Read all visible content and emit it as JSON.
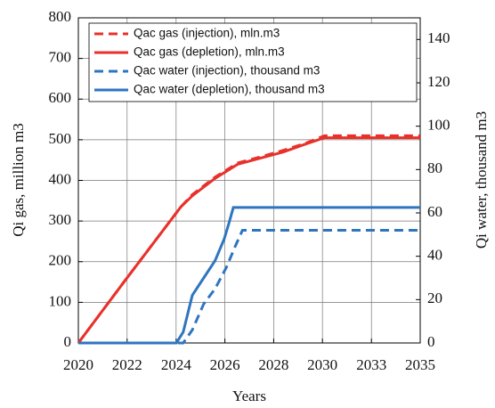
{
  "chart_data": {
    "type": "line",
    "x_label": "Years",
    "y_label": "Qi gas, million m3",
    "y2_label": "Qi water, thousand m3",
    "xlim": [
      2020,
      2035
    ],
    "xticks": [
      {
        "value": 2020,
        "label": "2020"
      },
      {
        "value": 2022.14,
        "label": "2022"
      },
      {
        "value": 2024.29,
        "label": "2024"
      },
      {
        "value": 2026.43,
        "label": "2026"
      },
      {
        "value": 2028.57,
        "label": "2028"
      },
      {
        "value": 2030.71,
        "label": "2030"
      },
      {
        "value": 2032.86,
        "label": "2033"
      },
      {
        "value": 2035,
        "label": "2035"
      }
    ],
    "ylim": [
      0,
      800
    ],
    "yticks": [
      0,
      100,
      200,
      300,
      400,
      500,
      600,
      700,
      800
    ],
    "y2lim": [
      0,
      150
    ],
    "y2ticks": [
      0,
      20,
      40,
      60,
      80,
      100,
      120,
      140
    ],
    "grid": true,
    "legend": "upper left",
    "series": [
      {
        "name": "Qac gas (injection), mln.m3",
        "color": "#e8312a",
        "style": "dashed",
        "x": [
          2020,
          2022,
          2024.5,
          2025,
          2026,
          2027,
          2028,
          2029,
          2030,
          2030.8,
          2035
        ],
        "values": [
          0,
          150,
          335,
          365,
          408,
          443,
          458,
          474,
          492,
          510,
          510
        ]
      },
      {
        "name": "Qac gas (depletion), mln.m3",
        "color": "#e8312a",
        "style": "solid",
        "x": [
          2020,
          2022,
          2024.5,
          2025,
          2026,
          2027,
          2028,
          2029,
          2030,
          2030.8,
          2035
        ],
        "values": [
          0,
          150,
          335,
          362,
          405,
          440,
          455,
          470,
          490,
          505,
          505
        ]
      },
      {
        "name": "Qac water (injection), thousand m3",
        "color": "#2e75c0",
        "style": "dashed",
        "axis": "y2",
        "x": [
          2020,
          2024.6,
          2025,
          2025.5,
          2026,
          2026.5,
          2026.9,
          2027.2,
          2035
        ],
        "values": [
          0,
          0,
          6,
          18,
          25,
          35,
          45,
          52,
          52
        ]
      },
      {
        "name": "Qac water (depletion), thousand m3",
        "color": "#2e75c0",
        "style": "solid",
        "axis": "y2",
        "x": [
          2020,
          2024.3,
          2024.6,
          2025,
          2025.5,
          2026,
          2026.4,
          2026.6,
          2026.8,
          2035
        ],
        "values": [
          0,
          0,
          5,
          22,
          30,
          38,
          48,
          55,
          62.5,
          62.5
        ]
      }
    ]
  }
}
